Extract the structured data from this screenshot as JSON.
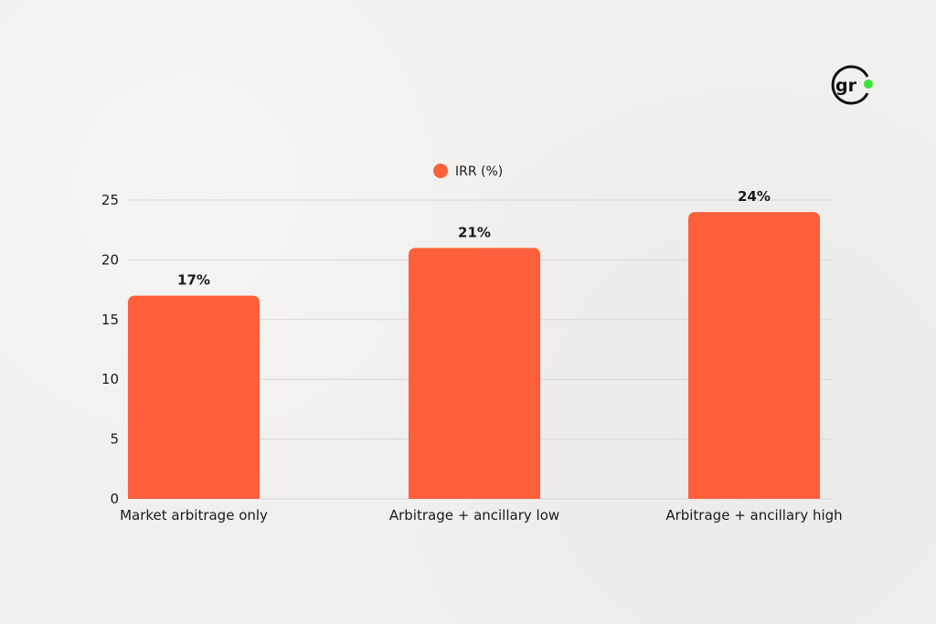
{
  "logo": {
    "text": "gr",
    "dot_color": "#39e639"
  },
  "chart_data": {
    "type": "bar",
    "categories": [
      "Market arbitrage only",
      "Arbitrage + ancillary low",
      "Arbitrage + ancillary high"
    ],
    "series": [
      {
        "name": "IRR (%)",
        "values": [
          17,
          21,
          24
        ],
        "data_labels": [
          "17%",
          "21%",
          "24%"
        ],
        "color": "#ff5f3b"
      }
    ],
    "ylim": [
      0,
      25
    ],
    "yticks": [
      0,
      5,
      10,
      15,
      20,
      25
    ],
    "grid": true,
    "legend": "top-center",
    "colors": {
      "gridline": "#d6d6d6",
      "text": "#1a1a1a"
    }
  }
}
